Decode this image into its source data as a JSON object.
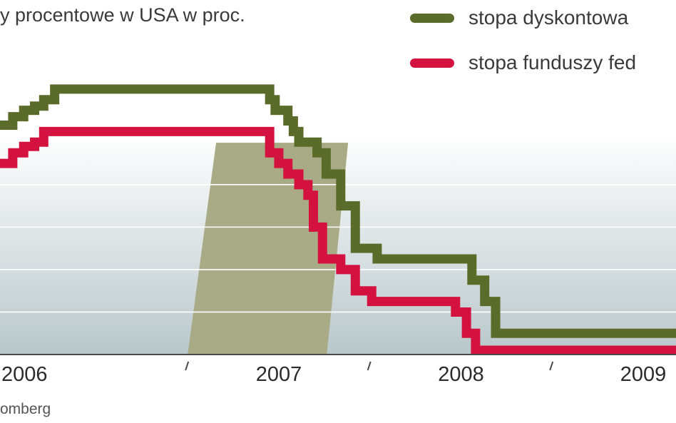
{
  "title": "y procentowe w USA w proc.",
  "source": "omberg",
  "legend": {
    "items": [
      {
        "label": "stopa dyskontowa",
        "color": "#5b6b2a"
      },
      {
        "label": "stopa funduszy fed",
        "color": "#d4123f"
      }
    ]
  },
  "colors": {
    "discount": "#5b6b2a",
    "fed": "#d4123f",
    "recession_band": "#a8ab85",
    "background_top": "#ffffff",
    "background_bottom": "#b9c7cb",
    "gridline": "#ffffff",
    "axis": "#4a4a4a"
  },
  "chart_data": {
    "type": "line",
    "step": true,
    "xaxis": {
      "tick_labels": [
        "2006",
        "2007",
        "2008",
        "2009"
      ],
      "range": [
        2005.97,
        2009.68
      ]
    },
    "ylim": [
      0,
      6.5
    ],
    "ylabel": "",
    "xlabel": "",
    "grid": true,
    "gridlines": [
      1,
      2,
      3,
      4,
      5
    ],
    "legend_position": "top-right",
    "shaded_period": {
      "from": 2007.0,
      "to": 2007.92
    },
    "series": [
      {
        "name": "stopa dyskontowa",
        "key": "discount",
        "points": [
          [
            2005.97,
            5.4
          ],
          [
            2006.04,
            5.6
          ],
          [
            2006.1,
            5.75
          ],
          [
            2006.16,
            5.85
          ],
          [
            2006.21,
            6.0
          ],
          [
            2006.27,
            6.25
          ],
          [
            2006.37,
            6.25
          ],
          [
            2007.42,
            6.25
          ],
          [
            2007.45,
            6.0
          ],
          [
            2007.48,
            5.75
          ],
          [
            2007.55,
            5.5
          ],
          [
            2007.58,
            5.25
          ],
          [
            2007.61,
            5.0
          ],
          [
            2007.66,
            5.0
          ],
          [
            2007.71,
            4.75
          ],
          [
            2007.76,
            4.25
          ],
          [
            2007.84,
            3.5
          ],
          [
            2007.92,
            2.5
          ],
          [
            2008.04,
            2.25
          ],
          [
            2008.5,
            2.25
          ],
          [
            2008.56,
            1.75
          ],
          [
            2008.63,
            1.25
          ],
          [
            2008.69,
            0.5
          ],
          [
            2009.68,
            0.5
          ]
        ]
      },
      {
        "name": "stopa funduszy fed",
        "key": "fed",
        "points": [
          [
            2005.97,
            4.5
          ],
          [
            2006.04,
            4.75
          ],
          [
            2006.1,
            4.9
          ],
          [
            2006.16,
            5.0
          ],
          [
            2006.21,
            5.25
          ],
          [
            2006.37,
            5.25
          ],
          [
            2007.42,
            5.25
          ],
          [
            2007.45,
            4.75
          ],
          [
            2007.5,
            4.5
          ],
          [
            2007.55,
            4.25
          ],
          [
            2007.61,
            4.0
          ],
          [
            2007.66,
            3.75
          ],
          [
            2007.69,
            3.0
          ],
          [
            2007.74,
            2.25
          ],
          [
            2007.84,
            2.0
          ],
          [
            2007.92,
            1.5
          ],
          [
            2008.01,
            1.25
          ],
          [
            2008.43,
            1.25
          ],
          [
            2008.47,
            1.0
          ],
          [
            2008.53,
            0.5
          ],
          [
            2008.58,
            0.1
          ],
          [
            2009.68,
            0.1
          ]
        ]
      }
    ]
  }
}
